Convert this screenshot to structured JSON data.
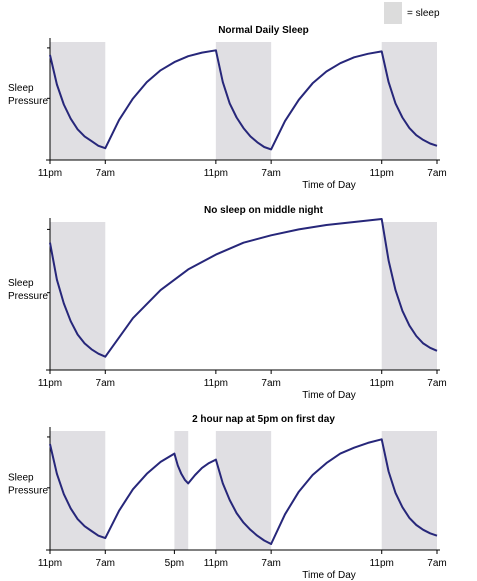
{
  "legend": {
    "label": "= sleep",
    "swatch_color": "#dcdcdc"
  },
  "colors": {
    "curve": "#27277a",
    "sleep_band": "#e0dfe3",
    "axis": "#000000"
  },
  "chart_data": [
    {
      "type": "line",
      "title": "Normal Daily Sleep",
      "ylabel": "Sleep Pressure",
      "xlabel": "Time of Day",
      "x_unit": "hours from 11pm on night 1",
      "xlim": [
        0,
        56
      ],
      "ylim": [
        0,
        100
      ],
      "x_ticks": [
        {
          "x": 0,
          "label": "11pm"
        },
        {
          "x": 8,
          "label": "7am"
        },
        {
          "x": 24,
          "label": "11pm"
        },
        {
          "x": 32,
          "label": "7am"
        },
        {
          "x": 48,
          "label": "11pm"
        },
        {
          "x": 56,
          "label": "7am"
        }
      ],
      "sleep_periods": [
        [
          0,
          8
        ],
        [
          24,
          32
        ],
        [
          48,
          56
        ]
      ],
      "series": [
        {
          "x": [
            0,
            1,
            2,
            3,
            4,
            5,
            6,
            7,
            8,
            10,
            12,
            14,
            16,
            18,
            20,
            22,
            24,
            25,
            26,
            27,
            28,
            29,
            30,
            31,
            32,
            34,
            36,
            38,
            40,
            42,
            44,
            46,
            48,
            49,
            50,
            51,
            52,
            53,
            54,
            55,
            56
          ],
          "values": [
            89,
            64,
            47,
            35,
            26,
            20,
            16,
            12,
            10,
            34,
            52,
            66,
            76,
            83,
            88,
            91,
            93,
            66,
            48,
            36,
            27,
            20,
            15,
            11,
            9,
            33,
            51,
            65,
            75,
            82,
            87,
            90,
            92,
            66,
            48,
            36,
            27,
            21,
            17,
            14,
            12
          ]
        }
      ]
    },
    {
      "type": "line",
      "title": "No sleep on middle night",
      "ylabel": "Sleep Pressure",
      "xlabel": "Time of Day",
      "x_unit": "hours from 11pm on night 1",
      "xlim": [
        0,
        56
      ],
      "ylim": [
        0,
        100
      ],
      "x_ticks": [
        {
          "x": 0,
          "label": "11pm"
        },
        {
          "x": 8,
          "label": "7am"
        },
        {
          "x": 24,
          "label": "11pm"
        },
        {
          "x": 32,
          "label": "7am"
        },
        {
          "x": 48,
          "label": "11pm"
        },
        {
          "x": 56,
          "label": "7am"
        }
      ],
      "sleep_periods": [
        [
          0,
          8
        ],
        [
          48,
          56
        ]
      ],
      "series": [
        {
          "x": [
            0,
            1,
            2,
            3,
            4,
            5,
            6,
            7,
            8,
            12,
            16,
            20,
            24,
            28,
            32,
            36,
            40,
            44,
            48,
            49,
            50,
            51,
            52,
            53,
            54,
            55,
            56
          ],
          "values": [
            86,
            61,
            45,
            33,
            24,
            18,
            14,
            11,
            9,
            35,
            54,
            68,
            78,
            86,
            91,
            95,
            98,
            100,
            102,
            74,
            54,
            40,
            30,
            23,
            18,
            15,
            13
          ]
        }
      ]
    },
    {
      "type": "line",
      "title": "2 hour nap at 5pm on first day",
      "ylabel": "Sleep Pressure",
      "xlabel": "Time of Day",
      "x_unit": "hours from 11pm on night 1",
      "xlim": [
        0,
        56
      ],
      "ylim": [
        0,
        100
      ],
      "x_ticks": [
        {
          "x": 0,
          "label": "11pm"
        },
        {
          "x": 8,
          "label": "7am"
        },
        {
          "x": 18,
          "label": "5pm"
        },
        {
          "x": 24,
          "label": "11pm"
        },
        {
          "x": 32,
          "label": "7am"
        },
        {
          "x": 48,
          "label": "11pm"
        },
        {
          "x": 56,
          "label": "7am"
        }
      ],
      "sleep_periods": [
        [
          0,
          8
        ],
        [
          18,
          20
        ],
        [
          24,
          32
        ],
        [
          48,
          56
        ]
      ],
      "series": [
        {
          "x": [
            0,
            1,
            2,
            3,
            4,
            5,
            6,
            7,
            8,
            10,
            12,
            14,
            16,
            18,
            18.5,
            19,
            19.5,
            20,
            21,
            22,
            23,
            24,
            25,
            26,
            27,
            28,
            29,
            30,
            31,
            32,
            34,
            36,
            38,
            40,
            42,
            44,
            46,
            48,
            49,
            50,
            51,
            52,
            53,
            54,
            55,
            56
          ],
          "values": [
            89,
            64,
            47,
            35,
            26,
            20,
            16,
            12,
            10,
            33,
            51,
            64,
            74,
            81,
            71,
            64,
            59,
            56,
            63,
            69,
            73,
            76,
            56,
            42,
            31,
            23,
            17,
            12,
            8,
            5,
            30,
            49,
            63,
            73,
            81,
            86,
            90,
            93,
            66,
            48,
            36,
            27,
            21,
            17,
            14,
            12
          ]
        }
      ]
    }
  ]
}
